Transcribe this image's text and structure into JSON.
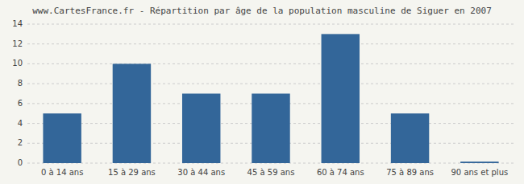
{
  "chart_data": {
    "type": "bar",
    "title": "www.CartesFrance.fr - Répartition par âge de la population masculine de Siguer en 2007",
    "categories": [
      "0 à 14 ans",
      "15 à 29 ans",
      "30 à 44 ans",
      "45 à 59 ans",
      "60 à 74 ans",
      "75 à 89 ans",
      "90 ans et plus"
    ],
    "values": [
      5,
      10,
      7,
      7,
      13,
      5,
      0.15
    ],
    "color": "#336699",
    "ylim": [
      0,
      14
    ],
    "yticks": [
      0,
      2,
      4,
      6,
      8,
      10,
      12,
      14
    ],
    "grid": true
  }
}
